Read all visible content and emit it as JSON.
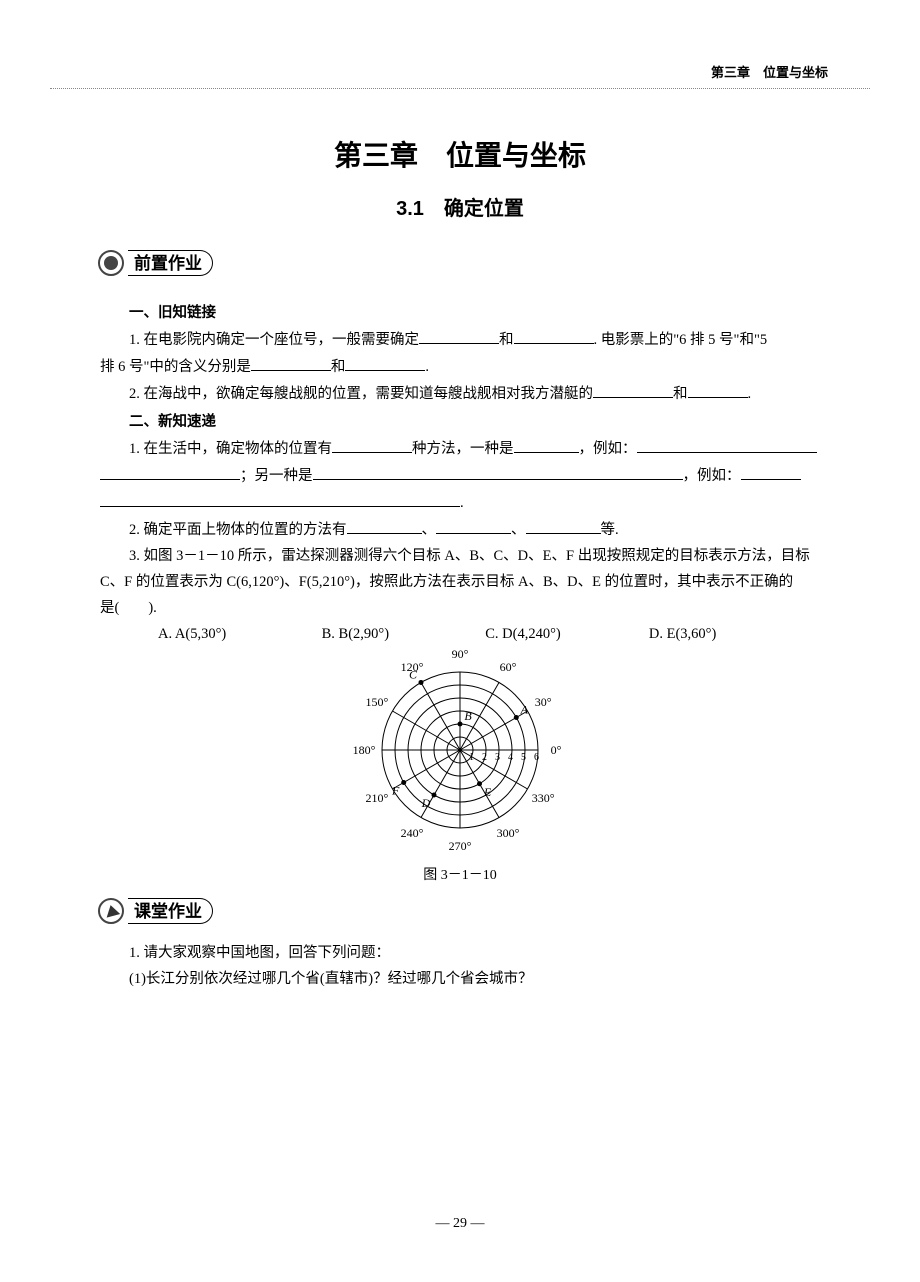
{
  "header": {
    "breadcrumb": "第三章　位置与坐标"
  },
  "chapter": {
    "title": "第三章　位置与坐标"
  },
  "section": {
    "number": "3.1",
    "title": "确定位置",
    "full": "3.1　确定位置"
  },
  "badges": {
    "pre": "前置作业",
    "class": "课堂作业"
  },
  "subsections": {
    "s1": "一、旧知链接",
    "s2": "二、新知速递"
  },
  "pre": {
    "q1_a": "1. 在电影院内确定一个座位号，一般需要确定",
    "q1_b": "和",
    "q1_c": ". 电影票上的\"6 排 5 号\"和\"5",
    "q1_d": "排 6 号\"中的含义分别是",
    "q1_e": "和",
    "q1_f": ".",
    "q2_a": "2. 在海战中，欲确定每艘战舰的位置，需要知道每艘战舰相对我方潜艇的",
    "q2_b": "和",
    "q2_c": "."
  },
  "new": {
    "q1_a": "1. 在生活中，确定物体的位置有",
    "q1_b": "种方法，一种是",
    "q1_c": "，例如：",
    "q1_d": "；另一种是",
    "q1_e": "，例如：",
    "q1_f": ".",
    "q2_a": "2. 确定平面上物体的位置的方法有",
    "q2_b": "、",
    "q2_c": "、",
    "q2_d": "等.",
    "q3_a": "3. 如图 3－1－10 所示，雷达探测器测得六个目标 A、B、C、D、E、F 出现按照规定的目标表示方法，目标",
    "q3_b": "C、F 的位置表示为 C(6,120°)、F(5,210°)，按照此方法在表示目标 A、B、D、E 的位置时，其中表示不正确的",
    "q3_c": "是(　　).",
    "options": {
      "A": "A. A(5,30°)",
      "B": "B. B(2,90°)",
      "C": "C. D(4,240°)",
      "D": "D. E(3,60°)"
    }
  },
  "figure": {
    "caption": "图 3－1－10",
    "rings": [
      "1",
      "2",
      "3",
      "4",
      "5",
      "6"
    ],
    "angles": [
      {
        "deg": 0,
        "label": "0°"
      },
      {
        "deg": 30,
        "label": "30°"
      },
      {
        "deg": 60,
        "label": "60°"
      },
      {
        "deg": 90,
        "label": "90°"
      },
      {
        "deg": 120,
        "label": "120°"
      },
      {
        "deg": 150,
        "label": "150°"
      },
      {
        "deg": 180,
        "label": "180°"
      },
      {
        "deg": 210,
        "label": "210°"
      },
      {
        "deg": 240,
        "label": "240°"
      },
      {
        "deg": 270,
        "label": "270°"
      },
      {
        "deg": 300,
        "label": "300°"
      },
      {
        "deg": 330,
        "label": "330°"
      }
    ],
    "points": [
      {
        "name": "A",
        "r": 5,
        "deg": 30
      },
      {
        "name": "B",
        "r": 2,
        "deg": 90
      },
      {
        "name": "C",
        "r": 6,
        "deg": 120
      },
      {
        "name": "D",
        "r": 4,
        "deg": 240
      },
      {
        "name": "E",
        "r": 3,
        "deg": 300
      },
      {
        "name": "F",
        "r": 5,
        "deg": 210
      }
    ],
    "ring_step": 13,
    "stroke": "#000000",
    "font_size": 12
  },
  "classwork": {
    "q1": "1. 请大家观察中国地图，回答下列问题：",
    "q1_1": "(1)长江分别依次经过哪几个省(直辖市)？经过哪几个省会城市？"
  },
  "page_number": "— 29 —"
}
